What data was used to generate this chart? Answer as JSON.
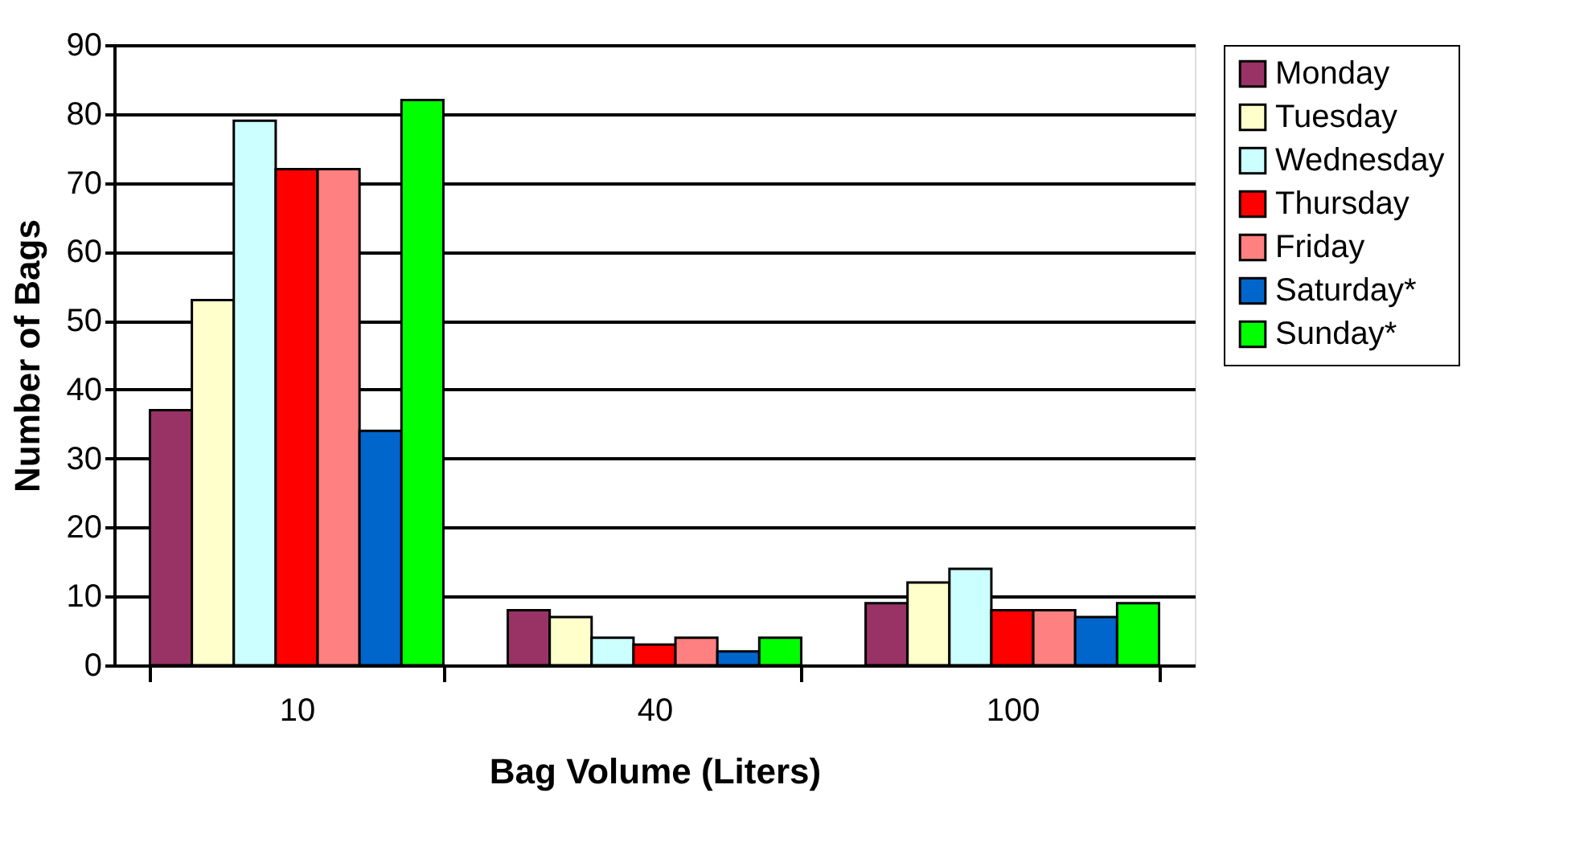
{
  "chart_data": {
    "type": "bar",
    "xlabel": "Bag Volume (Liters)",
    "ylabel": "Number of Bags",
    "categories": [
      "10",
      "40",
      "100"
    ],
    "series": [
      {
        "name": "Monday",
        "color": "#993366",
        "values": [
          37,
          8,
          9
        ]
      },
      {
        "name": "Tuesday",
        "color": "#ffffcc",
        "values": [
          53,
          7,
          12
        ]
      },
      {
        "name": "Wednesday",
        "color": "#ccffff",
        "values": [
          79,
          4,
          14
        ]
      },
      {
        "name": "Thursday",
        "color": "#ff0000",
        "values": [
          72,
          3,
          8
        ]
      },
      {
        "name": "Friday",
        "color": "#ff8080",
        "values": [
          72,
          4,
          8
        ]
      },
      {
        "name": "Saturday*",
        "color": "#0066cc",
        "values": [
          34,
          2,
          7
        ]
      },
      {
        "name": "Sunday*",
        "color": "#00ff00",
        "values": [
          82,
          4,
          9
        ]
      }
    ],
    "ylim": [
      0,
      90
    ],
    "yticks": [
      0,
      10,
      20,
      30,
      40,
      50,
      60,
      70,
      80,
      90
    ],
    "grid": "y",
    "legend": "right"
  }
}
